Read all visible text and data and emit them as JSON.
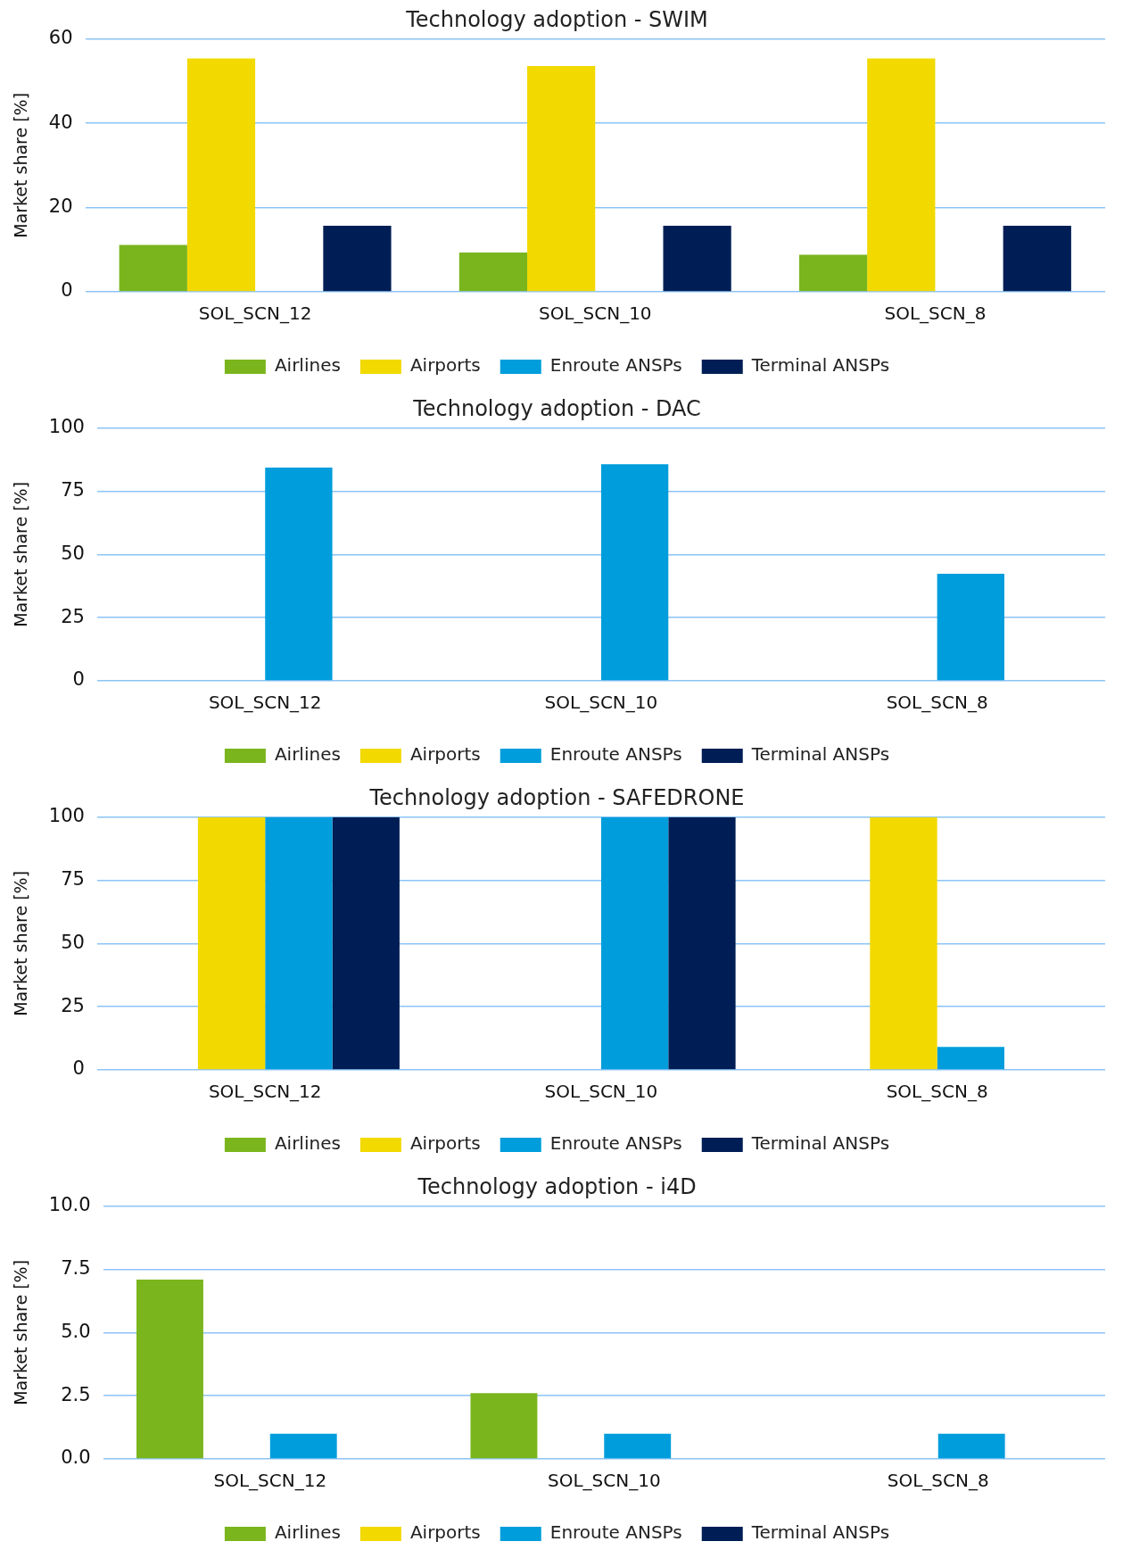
{
  "chart_data": [
    {
      "type": "bar",
      "title": "Technology adoption - SWIM",
      "ylabel": "Market share [%]",
      "categories": [
        "SOL_SCN_12",
        "SOL_SCN_10",
        "SOL_SCN_8"
      ],
      "series": [
        {
          "name": "Airlines",
          "color": "#7ab51d",
          "values": [
            11.1,
            9.3,
            8.8
          ]
        },
        {
          "name": "Airports",
          "color": "#f2d900",
          "values": [
            55.4,
            53.6,
            55.4
          ]
        },
        {
          "name": "Enroute ANSPs",
          "color": "#009ddc",
          "values": [
            0,
            0,
            0
          ]
        },
        {
          "name": "Terminal ANSPs",
          "color": "#001e55",
          "values": [
            15.7,
            15.7,
            15.7
          ]
        }
      ],
      "ylim": [
        0,
        60
      ],
      "yticks": [
        0,
        20,
        40,
        60
      ],
      "grid": "y",
      "legend": "bottom"
    },
    {
      "type": "bar",
      "title": "Technology adoption - DAC",
      "ylabel": "Market share [%]",
      "categories": [
        "SOL_SCN_12",
        "SOL_SCN_10",
        "SOL_SCN_8"
      ],
      "series": [
        {
          "name": "Airlines",
          "color": "#7ab51d",
          "values": [
            0,
            0,
            0
          ]
        },
        {
          "name": "Airports",
          "color": "#f2d900",
          "values": [
            0,
            0,
            0
          ]
        },
        {
          "name": "Enroute ANSPs",
          "color": "#009ddc",
          "values": [
            84.4,
            85.7,
            42.4
          ]
        },
        {
          "name": "Terminal ANSPs",
          "color": "#001e55",
          "values": [
            0,
            0,
            0
          ]
        }
      ],
      "ylim": [
        0,
        100
      ],
      "yticks": [
        0,
        25,
        50,
        75,
        100
      ],
      "grid": "y",
      "legend": "bottom"
    },
    {
      "type": "bar",
      "title": "Technology adoption - SAFEDRONE",
      "ylabel": "Market share [%]",
      "categories": [
        "SOL_SCN_12",
        "SOL_SCN_10",
        "SOL_SCN_8"
      ],
      "series": [
        {
          "name": "Airlines",
          "color": "#7ab51d",
          "values": [
            0,
            0,
            0
          ]
        },
        {
          "name": "Airports",
          "color": "#f2d900",
          "values": [
            100,
            0,
            100
          ]
        },
        {
          "name": "Enroute ANSPs",
          "color": "#009ddc",
          "values": [
            100,
            100,
            9.1
          ]
        },
        {
          "name": "Terminal ANSPs",
          "color": "#001e55",
          "values": [
            100,
            100,
            0
          ]
        }
      ],
      "ylim": [
        0,
        100
      ],
      "yticks": [
        0,
        25,
        50,
        75,
        100
      ],
      "grid": "y",
      "legend": "bottom"
    },
    {
      "type": "bar",
      "title": "Technology adoption - i4D",
      "ylabel": "Market share [%]",
      "categories": [
        "SOL_SCN_12",
        "SOL_SCN_10",
        "SOL_SCN_8"
      ],
      "series": [
        {
          "name": "Airlines",
          "color": "#7ab51d",
          "values": [
            7.1,
            2.6,
            0
          ]
        },
        {
          "name": "Airports",
          "color": "#f2d900",
          "values": [
            0,
            0,
            0
          ]
        },
        {
          "name": "Enroute ANSPs",
          "color": "#009ddc",
          "values": [
            1.0,
            1.0,
            1.0
          ]
        },
        {
          "name": "Terminal ANSPs",
          "color": "#001e55",
          "values": [
            0,
            0,
            0
          ]
        }
      ],
      "ylim": [
        0,
        10
      ],
      "yticks": [
        {
          "value": 0,
          "label": "0.0"
        },
        2.5,
        {
          "value": 5,
          "label": "5.0"
        },
        7.5,
        {
          "value": 10,
          "label": "10.0"
        }
      ],
      "grid": "y",
      "legend": "bottom"
    }
  ]
}
